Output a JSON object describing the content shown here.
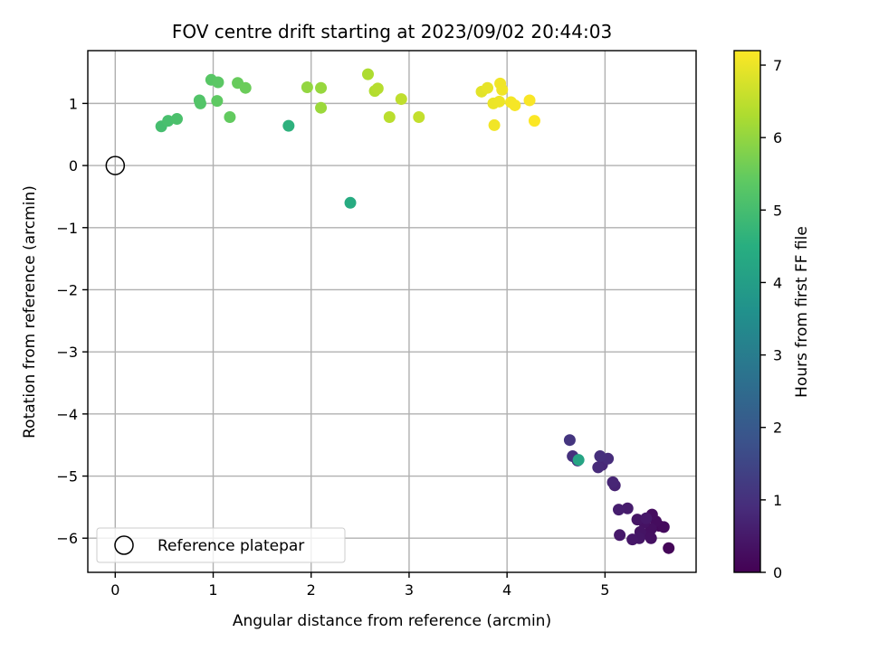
{
  "chart_data": {
    "type": "scatter",
    "title": "FOV centre drift starting at 2023/09/02 20:44:03",
    "xlabel": "Angular distance from reference (arcmin)",
    "ylabel": "Rotation from reference (arcmin)",
    "xlim": [
      -0.28,
      5.93
    ],
    "ylim": [
      -6.55,
      1.85
    ],
    "xticks": [
      0,
      1,
      2,
      3,
      4,
      5
    ],
    "yticks": [
      1,
      0,
      -1,
      -2,
      -3,
      -4,
      -5,
      -6
    ],
    "xtick_labels": [
      "0",
      "1",
      "2",
      "3",
      "4",
      "5"
    ],
    "ytick_labels": [
      "1",
      "0",
      "−1",
      "−2",
      "−3",
      "−4",
      "−5",
      "−6"
    ],
    "grid": true,
    "colormap": "viridis",
    "colorbar": {
      "label": "Hours from first FF file",
      "range": [
        0,
        7.2
      ],
      "ticks": [
        0,
        1,
        2,
        3,
        4,
        5,
        6,
        7
      ],
      "tick_labels": [
        "0",
        "1",
        "2",
        "3",
        "4",
        "5",
        "6",
        "7"
      ]
    },
    "reference": {
      "x": 0,
      "y": 0,
      "label": "Reference platepar"
    },
    "legend": {
      "placement": "lower-left",
      "entries": [
        "Reference platepar"
      ]
    },
    "points": [
      {
        "x": 5.65,
        "y": -6.16,
        "hours": 0.1
      },
      {
        "x": 5.55,
        "y": -5.8,
        "hours": 0.15
      },
      {
        "x": 5.6,
        "y": -5.82,
        "hours": 0.2
      },
      {
        "x": 5.52,
        "y": -5.73,
        "hours": 0.22
      },
      {
        "x": 5.48,
        "y": -5.62,
        "hours": 0.25
      },
      {
        "x": 5.47,
        "y": -5.85,
        "hours": 0.28
      },
      {
        "x": 5.45,
        "y": -5.95,
        "hours": 0.3
      },
      {
        "x": 5.47,
        "y": -6.0,
        "hours": 0.32
      },
      {
        "x": 5.4,
        "y": -5.75,
        "hours": 0.35
      },
      {
        "x": 5.36,
        "y": -5.9,
        "hours": 0.38
      },
      {
        "x": 5.33,
        "y": -5.7,
        "hours": 0.4
      },
      {
        "x": 5.35,
        "y": -6.0,
        "hours": 0.42
      },
      {
        "x": 5.28,
        "y": -6.02,
        "hours": 0.45
      },
      {
        "x": 5.42,
        "y": -5.68,
        "hours": 0.48
      },
      {
        "x": 5.15,
        "y": -5.95,
        "hours": 0.5
      },
      {
        "x": 5.23,
        "y": -5.52,
        "hours": 0.55
      },
      {
        "x": 5.14,
        "y": -5.54,
        "hours": 0.6
      },
      {
        "x": 5.1,
        "y": -5.15,
        "hours": 0.7
      },
      {
        "x": 5.08,
        "y": -5.1,
        "hours": 0.75
      },
      {
        "x": 4.97,
        "y": -4.82,
        "hours": 0.8
      },
      {
        "x": 4.93,
        "y": -4.86,
        "hours": 0.85
      },
      {
        "x": 5.03,
        "y": -4.72,
        "hours": 0.9
      },
      {
        "x": 4.95,
        "y": -4.68,
        "hours": 0.95
      },
      {
        "x": 4.67,
        "y": -4.68,
        "hours": 1.0
      },
      {
        "x": 4.72,
        "y": -4.75,
        "hours": 1.05
      },
      {
        "x": 4.64,
        "y": -4.42,
        "hours": 1.1
      },
      {
        "x": 4.73,
        "y": -4.74,
        "hours": 4.2
      },
      {
        "x": 2.4,
        "y": -0.6,
        "hours": 4.4
      },
      {
        "x": 1.77,
        "y": 0.64,
        "hours": 4.6
      },
      {
        "x": 0.47,
        "y": 0.63,
        "hours": 5.0
      },
      {
        "x": 0.54,
        "y": 0.72,
        "hours": 5.05
      },
      {
        "x": 0.63,
        "y": 0.75,
        "hours": 5.1
      },
      {
        "x": 0.86,
        "y": 1.05,
        "hours": 5.2
      },
      {
        "x": 0.87,
        "y": 1.0,
        "hours": 5.22
      },
      {
        "x": 0.98,
        "y": 1.38,
        "hours": 5.3
      },
      {
        "x": 1.05,
        "y": 1.34,
        "hours": 5.35
      },
      {
        "x": 1.04,
        "y": 1.04,
        "hours": 5.4
      },
      {
        "x": 1.17,
        "y": 0.78,
        "hours": 5.45
      },
      {
        "x": 1.25,
        "y": 1.33,
        "hours": 5.5
      },
      {
        "x": 1.33,
        "y": 1.25,
        "hours": 5.55
      },
      {
        "x": 1.96,
        "y": 1.26,
        "hours": 6.0
      },
      {
        "x": 2.1,
        "y": 1.25,
        "hours": 6.05
      },
      {
        "x": 2.1,
        "y": 0.93,
        "hours": 6.1
      },
      {
        "x": 2.58,
        "y": 1.47,
        "hours": 6.3
      },
      {
        "x": 2.65,
        "y": 1.2,
        "hours": 6.35
      },
      {
        "x": 2.68,
        "y": 1.24,
        "hours": 6.4
      },
      {
        "x": 2.8,
        "y": 0.78,
        "hours": 6.45
      },
      {
        "x": 2.92,
        "y": 1.07,
        "hours": 6.5
      },
      {
        "x": 3.1,
        "y": 0.78,
        "hours": 6.55
      },
      {
        "x": 3.74,
        "y": 1.19,
        "hours": 6.9
      },
      {
        "x": 3.8,
        "y": 1.25,
        "hours": 6.95
      },
      {
        "x": 3.86,
        "y": 1.0,
        "hours": 7.0
      },
      {
        "x": 3.92,
        "y": 1.03,
        "hours": 7.02
      },
      {
        "x": 3.93,
        "y": 1.32,
        "hours": 7.05
      },
      {
        "x": 3.95,
        "y": 1.22,
        "hours": 7.05
      },
      {
        "x": 3.87,
        "y": 0.65,
        "hours": 7.07
      },
      {
        "x": 4.04,
        "y": 1.02,
        "hours": 7.1
      },
      {
        "x": 4.08,
        "y": 0.97,
        "hours": 7.12
      },
      {
        "x": 4.23,
        "y": 1.05,
        "hours": 7.15
      },
      {
        "x": 4.28,
        "y": 0.72,
        "hours": 7.18
      }
    ]
  }
}
